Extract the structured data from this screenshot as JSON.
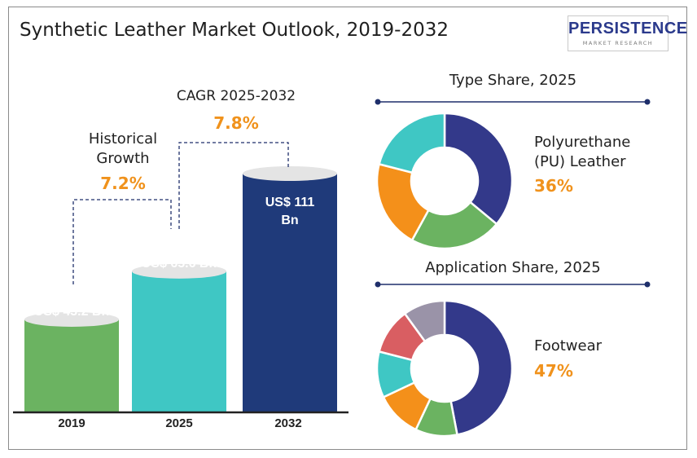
{
  "title": "Synthetic Leather Market Outlook, 2019-2032",
  "logo": {
    "brand": "PERSISTENCE",
    "sub": "MARKET RESEARCH"
  },
  "growth": {
    "historical_label": "Historical Growth",
    "historical_value": "7.2%",
    "cagr_label": "CAGR 2025-2032",
    "cagr_value": "7.8%"
  },
  "chart_data": [
    {
      "type": "bar",
      "categories": [
        "2019",
        "2025",
        "2032"
      ],
      "values": [
        43.2,
        65.6,
        111
      ],
      "value_labels": [
        "US$ 43.2 Bn",
        "US$ 65.6 Bn",
        "US$ 111 Bn"
      ],
      "colors": [
        "#6bb361",
        "#3fc7c4",
        "#1f3a7a"
      ],
      "ylim": [
        0,
        111
      ]
    },
    {
      "type": "pie",
      "title": "Type Share, 2025",
      "highlight_label": "Polyurethane (PU) Leather",
      "highlight_value": "36%",
      "values": [
        36,
        22,
        21,
        21
      ],
      "colors": [
        "#33398a",
        "#6bb361",
        "#f4901a",
        "#3fc7c4"
      ]
    },
    {
      "type": "pie",
      "title": "Application Share, 2025",
      "highlight_label": "Footwear",
      "highlight_value": "47%",
      "values": [
        47,
        10,
        11,
        11,
        11,
        10
      ],
      "colors": [
        "#33398a",
        "#6bb361",
        "#f4901a",
        "#3fc7c4",
        "#d95e62",
        "#9a93a8"
      ]
    }
  ]
}
